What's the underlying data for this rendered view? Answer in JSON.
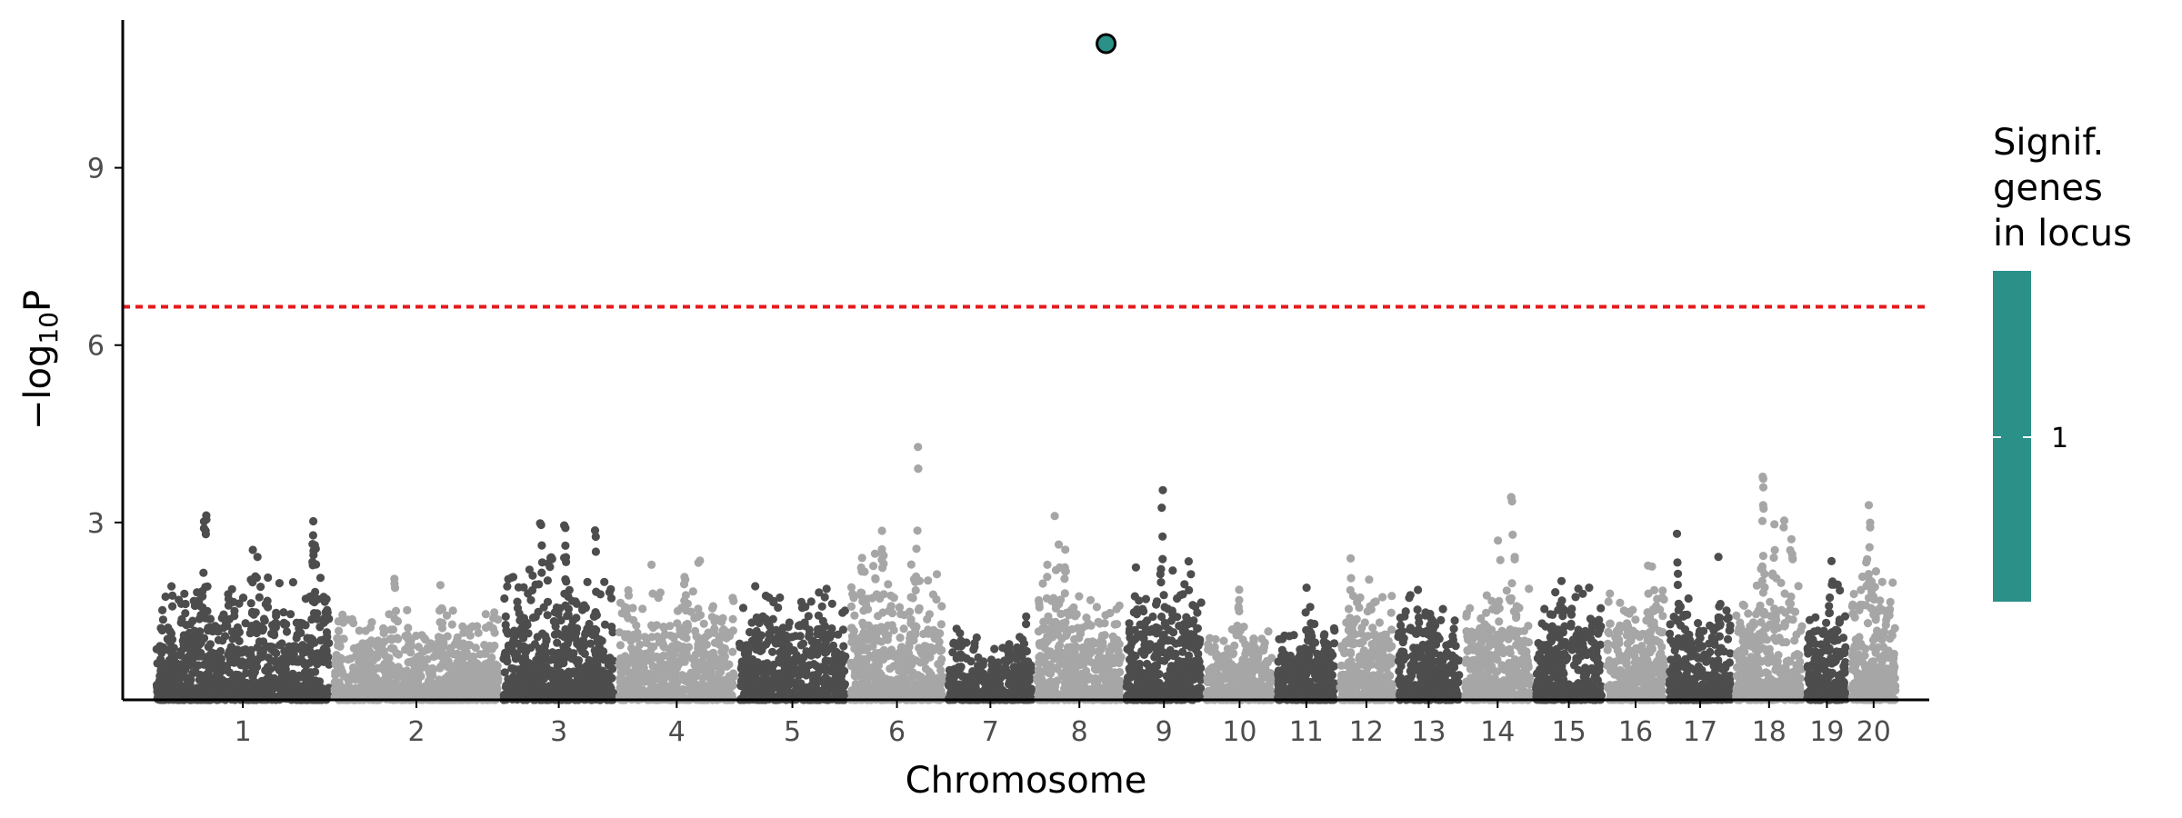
{
  "chart_data": {
    "type": "scatter",
    "subtype": "manhattan",
    "title": "",
    "xlabel": "Chromosome",
    "ylabel": "−log10P",
    "ylabel_parts": {
      "lead": "−log",
      "sub": "10",
      "tail": "P"
    },
    "ylim": [
      0,
      11.5
    ],
    "yticks": [
      3,
      6,
      9
    ],
    "grid": false,
    "significance_threshold": 6.65,
    "colors": {
      "dark": "#4d4d4d",
      "light": "#a6a6a6",
      "threshold": "#e41a1c",
      "highlight": "#2a9088",
      "axis": "#000000"
    },
    "chromosomes": [
      {
        "label": "1",
        "start": 0,
        "end": 2.0,
        "peak": 4.7,
        "base": 2.2
      },
      {
        "label": "2",
        "start": 2.0,
        "end": 3.9,
        "peak": 3.4,
        "base": 1.6
      },
      {
        "label": "3",
        "start": 3.9,
        "end": 5.2,
        "peak": 4.0,
        "base": 2.6
      },
      {
        "label": "4",
        "start": 5.2,
        "end": 6.55,
        "peak": 2.9,
        "base": 2.0
      },
      {
        "label": "5",
        "start": 6.55,
        "end": 7.8,
        "peak": 2.5,
        "base": 2.0
      },
      {
        "label": "6",
        "start": 7.8,
        "end": 8.9,
        "peak": 5.4,
        "base": 2.6
      },
      {
        "label": "7",
        "start": 8.9,
        "end": 9.9,
        "peak": 2.9,
        "base": 1.1
      },
      {
        "label": "8",
        "start": 9.9,
        "end": 10.9,
        "peak": 3.4,
        "base": 2.0
      },
      {
        "label": "9",
        "start": 10.9,
        "end": 11.8,
        "peak": 4.2,
        "base": 2.4
      },
      {
        "label": "10",
        "start": 11.8,
        "end": 12.6,
        "peak": 2.0,
        "base": 1.4
      },
      {
        "label": "11",
        "start": 12.6,
        "end": 13.3,
        "peak": 2.1,
        "base": 1.4
      },
      {
        "label": "12",
        "start": 13.3,
        "end": 13.95,
        "peak": 2.5,
        "base": 2.0
      },
      {
        "label": "13",
        "start": 13.95,
        "end": 14.7,
        "peak": 2.3,
        "base": 1.8
      },
      {
        "label": "14",
        "start": 14.7,
        "end": 15.5,
        "peak": 4.2,
        "base": 2.0
      },
      {
        "label": "15",
        "start": 15.5,
        "end": 16.3,
        "peak": 2.6,
        "base": 2.0
      },
      {
        "label": "16",
        "start": 16.3,
        "end": 17.0,
        "peak": 2.9,
        "base": 2.0
      },
      {
        "label": "17",
        "start": 17.0,
        "end": 17.75,
        "peak": 3.0,
        "base": 1.8
      },
      {
        "label": "18",
        "start": 17.75,
        "end": 18.55,
        "peak": 4.5,
        "base": 2.2
      },
      {
        "label": "19",
        "start": 18.55,
        "end": 19.05,
        "peak": 3.2,
        "base": 1.6
      },
      {
        "label": "20",
        "start": 19.05,
        "end": 19.6,
        "peak": 4.5,
        "base": 2.4
      }
    ],
    "xrange": [
      -0.35,
      19.95
    ],
    "highlight_point": {
      "x": 10.7,
      "y": 11.1,
      "chromosome": "8"
    },
    "legend": {
      "title_lines": [
        "Signif.",
        "genes",
        "in locus"
      ],
      "label": "1",
      "placement": "right"
    }
  }
}
